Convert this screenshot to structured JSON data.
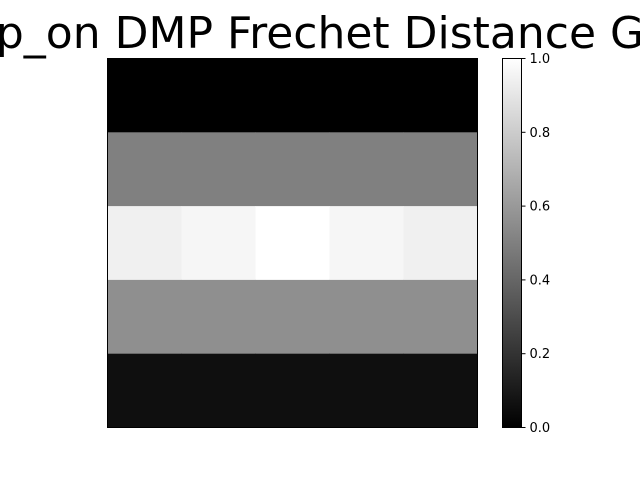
{
  "chart_data": {
    "type": "heatmap",
    "title": "p_on DMP Frechet Distance G",
    "xlabel": "",
    "ylabel": "",
    "colormap": "gray",
    "rows": 5,
    "cols": 5,
    "values": [
      [
        0.0,
        0.0,
        0.0,
        0.0,
        0.0
      ],
      [
        0.5,
        0.5,
        0.5,
        0.5,
        0.5
      ],
      [
        0.94,
        0.965,
        1.0,
        0.965,
        0.94
      ],
      [
        0.56,
        0.56,
        0.56,
        0.56,
        0.56
      ],
      [
        0.06,
        0.06,
        0.06,
        0.06,
        0.06
      ]
    ],
    "colorbar": {
      "range": [
        0.0,
        1.0
      ],
      "ticks": [
        0.0,
        0.2,
        0.4,
        0.6,
        0.8,
        1.0
      ],
      "tick_labels": [
        "0.0",
        "0.2",
        "0.4",
        "0.6",
        "0.8",
        "1.0"
      ]
    },
    "axes_visible": false
  }
}
